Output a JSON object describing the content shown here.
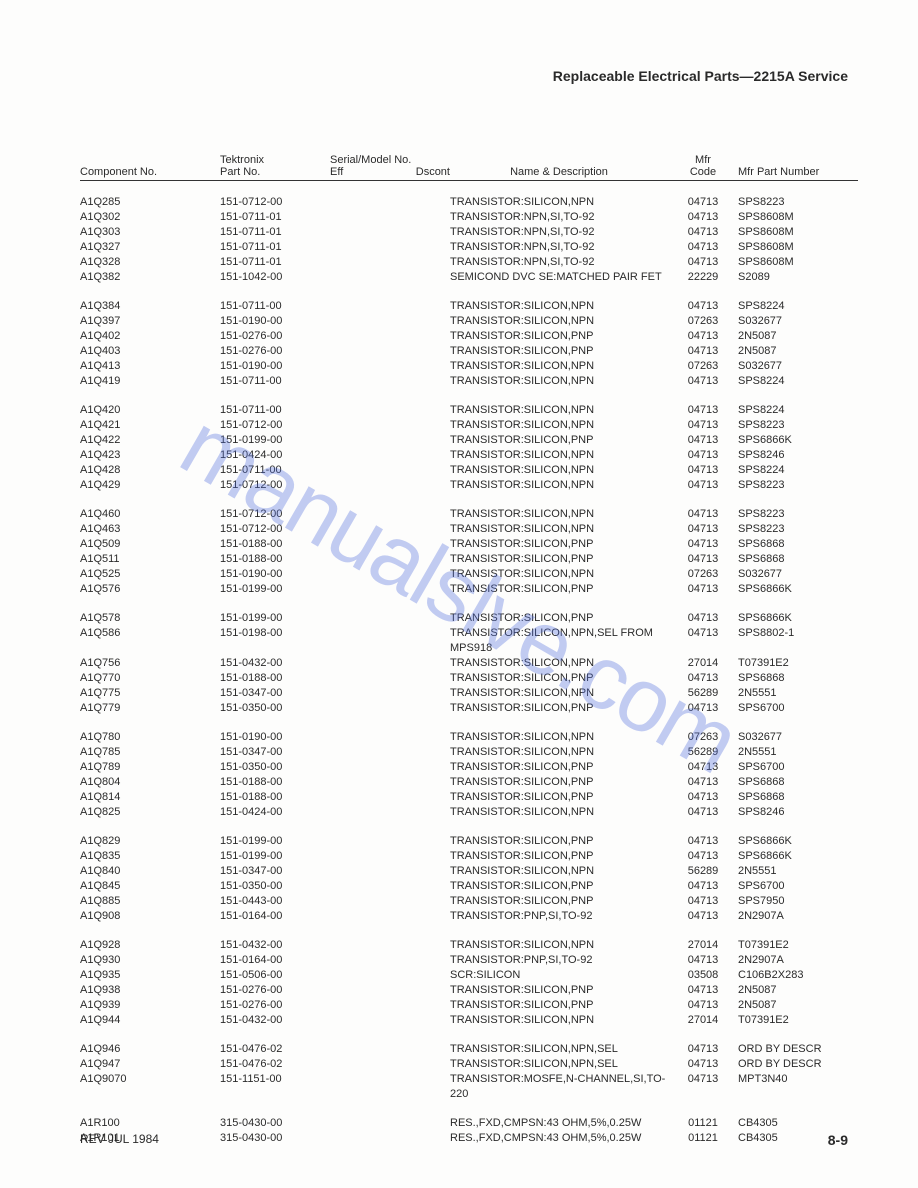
{
  "header_title": "Replaceable Electrical Parts—2215A Service",
  "columns": {
    "component_no": "Component No.",
    "tektronix": "Tektronix",
    "part_no": "Part No.",
    "serial_model": "Serial/Model No.",
    "eff": "Eff",
    "dscont": "Dscont",
    "name_desc": "Name & Description",
    "mfr": "Mfr",
    "code": "Code",
    "mfr_part": "Mfr Part Number"
  },
  "rows": [
    {
      "c": "A1Q285",
      "p": "151-0712-00",
      "d": "TRANSISTOR:SILICON,NPN",
      "m": "04713",
      "n": "SPS8223"
    },
    {
      "c": "A1Q302",
      "p": "151-0711-01",
      "d": "TRANSISTOR:NPN,SI,TO-92",
      "m": "04713",
      "n": "SPS8608M"
    },
    {
      "c": "A1Q303",
      "p": "151-0711-01",
      "d": "TRANSISTOR:NPN,SI,TO-92",
      "m": "04713",
      "n": "SPS8608M"
    },
    {
      "c": "A1Q327",
      "p": "151-0711-01",
      "d": "TRANSISTOR:NPN,SI,TO-92",
      "m": "04713",
      "n": "SPS8608M"
    },
    {
      "c": "A1Q328",
      "p": "151-0711-01",
      "d": "TRANSISTOR:NPN,SI,TO-92",
      "m": "04713",
      "n": "SPS8608M"
    },
    {
      "c": "A1Q382",
      "p": "151-1042-00",
      "d": "SEMICOND DVC SE:MATCHED PAIR FET",
      "m": "22229",
      "n": "S2089"
    },
    {
      "sp": true
    },
    {
      "c": "A1Q384",
      "p": "151-0711-00",
      "d": "TRANSISTOR:SILICON,NPN",
      "m": "04713",
      "n": "SPS8224"
    },
    {
      "c": "A1Q397",
      "p": "151-0190-00",
      "d": "TRANSISTOR:SILICON,NPN",
      "m": "07263",
      "n": "S032677"
    },
    {
      "c": "A1Q402",
      "p": "151-0276-00",
      "d": "TRANSISTOR:SILICON,PNP",
      "m": "04713",
      "n": "2N5087"
    },
    {
      "c": "A1Q403",
      "p": "151-0276-00",
      "d": "TRANSISTOR:SILICON,PNP",
      "m": "04713",
      "n": "2N5087"
    },
    {
      "c": "A1Q413",
      "p": "151-0190-00",
      "d": "TRANSISTOR:SILICON,NPN",
      "m": "07263",
      "n": "S032677"
    },
    {
      "c": "A1Q419",
      "p": "151-0711-00",
      "d": "TRANSISTOR:SILICON,NPN",
      "m": "04713",
      "n": "SPS8224"
    },
    {
      "sp": true
    },
    {
      "c": "A1Q420",
      "p": "151-0711-00",
      "d": "TRANSISTOR:SILICON,NPN",
      "m": "04713",
      "n": "SPS8224"
    },
    {
      "c": "A1Q421",
      "p": "151-0712-00",
      "d": "TRANSISTOR:SILICON,NPN",
      "m": "04713",
      "n": "SPS8223"
    },
    {
      "c": "A1Q422",
      "p": "151-0199-00",
      "d": "TRANSISTOR:SILICON,PNP",
      "m": "04713",
      "n": "SPS6866K"
    },
    {
      "c": "A1Q423",
      "p": "151-0424-00",
      "d": "TRANSISTOR:SILICON,NPN",
      "m": "04713",
      "n": "SPS8246"
    },
    {
      "c": "A1Q428",
      "p": "151-0711-00",
      "d": "TRANSISTOR:SILICON,NPN",
      "m": "04713",
      "n": "SPS8224"
    },
    {
      "c": "A1Q429",
      "p": "151-0712-00",
      "d": "TRANSISTOR:SILICON,NPN",
      "m": "04713",
      "n": "SPS8223"
    },
    {
      "sp": true
    },
    {
      "c": "A1Q460",
      "p": "151-0712-00",
      "d": "TRANSISTOR:SILICON,NPN",
      "m": "04713",
      "n": "SPS8223"
    },
    {
      "c": "A1Q463",
      "p": "151-0712-00",
      "d": "TRANSISTOR:SILICON,NPN",
      "m": "04713",
      "n": "SPS8223"
    },
    {
      "c": "A1Q509",
      "p": "151-0188-00",
      "d": "TRANSISTOR:SILICON,PNP",
      "m": "04713",
      "n": "SPS6868"
    },
    {
      "c": "A1Q511",
      "p": "151-0188-00",
      "d": "TRANSISTOR:SILICON,PNP",
      "m": "04713",
      "n": "SPS6868"
    },
    {
      "c": "A1Q525",
      "p": "151-0190-00",
      "d": "TRANSISTOR:SILICON,NPN",
      "m": "07263",
      "n": "S032677"
    },
    {
      "c": "A1Q576",
      "p": "151-0199-00",
      "d": "TRANSISTOR:SILICON,PNP",
      "m": "04713",
      "n": "SPS6866K"
    },
    {
      "sp": true
    },
    {
      "c": "A1Q578",
      "p": "151-0199-00",
      "d": "TRANSISTOR:SILICON,PNP",
      "m": "04713",
      "n": "SPS6866K"
    },
    {
      "c": "A1Q586",
      "p": "151-0198-00",
      "d": "TRANSISTOR:SILICON,NPN,SEL FROM MPS918",
      "m": "04713",
      "n": "SPS8802-1"
    },
    {
      "c": "A1Q756",
      "p": "151-0432-00",
      "d": "TRANSISTOR:SILICON,NPN",
      "m": "27014",
      "n": "T07391E2"
    },
    {
      "c": "A1Q770",
      "p": "151-0188-00",
      "d": "TRANSISTOR:SILICON,PNP",
      "m": "04713",
      "n": "SPS6868"
    },
    {
      "c": "A1Q775",
      "p": "151-0347-00",
      "d": "TRANSISTOR:SILICON,NPN",
      "m": "56289",
      "n": "2N5551"
    },
    {
      "c": "A1Q779",
      "p": "151-0350-00",
      "d": "TRANSISTOR:SILICON,PNP",
      "m": "04713",
      "n": "SPS6700"
    },
    {
      "sp": true
    },
    {
      "c": "A1Q780",
      "p": "151-0190-00",
      "d": "TRANSISTOR:SILICON,NPN",
      "m": "07263",
      "n": "S032677"
    },
    {
      "c": "A1Q785",
      "p": "151-0347-00",
      "d": "TRANSISTOR:SILICON,NPN",
      "m": "56289",
      "n": "2N5551"
    },
    {
      "c": "A1Q789",
      "p": "151-0350-00",
      "d": "TRANSISTOR:SILICON,PNP",
      "m": "04713",
      "n": "SPS6700"
    },
    {
      "c": "A1Q804",
      "p": "151-0188-00",
      "d": "TRANSISTOR:SILICON,PNP",
      "m": "04713",
      "n": "SPS6868"
    },
    {
      "c": "A1Q814",
      "p": "151-0188-00",
      "d": "TRANSISTOR:SILICON,PNP",
      "m": "04713",
      "n": "SPS6868"
    },
    {
      "c": "A1Q825",
      "p": "151-0424-00",
      "d": "TRANSISTOR:SILICON,NPN",
      "m": "04713",
      "n": "SPS8246"
    },
    {
      "sp": true
    },
    {
      "c": "A1Q829",
      "p": "151-0199-00",
      "d": "TRANSISTOR:SILICON,PNP",
      "m": "04713",
      "n": "SPS6866K"
    },
    {
      "c": "A1Q835",
      "p": "151-0199-00",
      "d": "TRANSISTOR:SILICON,PNP",
      "m": "04713",
      "n": "SPS6866K"
    },
    {
      "c": "A1Q840",
      "p": "151-0347-00",
      "d": "TRANSISTOR:SILICON,NPN",
      "m": "56289",
      "n": "2N5551"
    },
    {
      "c": "A1Q845",
      "p": "151-0350-00",
      "d": "TRANSISTOR:SILICON,PNP",
      "m": "04713",
      "n": "SPS6700"
    },
    {
      "c": "A1Q885",
      "p": "151-0443-00",
      "d": "TRANSISTOR:SILICON,PNP",
      "m": "04713",
      "n": "SPS7950"
    },
    {
      "c": "A1Q908",
      "p": "151-0164-00",
      "d": "TRANSISTOR:PNP,SI,TO-92",
      "m": "04713",
      "n": "2N2907A"
    },
    {
      "sp": true
    },
    {
      "c": "A1Q928",
      "p": "151-0432-00",
      "d": "TRANSISTOR:SILICON,NPN",
      "m": "27014",
      "n": "T07391E2"
    },
    {
      "c": "A1Q930",
      "p": "151-0164-00",
      "d": "TRANSISTOR:PNP,SI,TO-92",
      "m": "04713",
      "n": "2N2907A"
    },
    {
      "c": "A1Q935",
      "p": "151-0506-00",
      "d": "SCR:SILICON",
      "m": "03508",
      "n": "C106B2X283"
    },
    {
      "c": "A1Q938",
      "p": "151-0276-00",
      "d": "TRANSISTOR:SILICON,PNP",
      "m": "04713",
      "n": "2N5087"
    },
    {
      "c": "A1Q939",
      "p": "151-0276-00",
      "d": "TRANSISTOR:SILICON,PNP",
      "m": "04713",
      "n": "2N5087"
    },
    {
      "c": "A1Q944",
      "p": "151-0432-00",
      "d": "TRANSISTOR:SILICON,NPN",
      "m": "27014",
      "n": "T07391E2"
    },
    {
      "sp": true
    },
    {
      "c": "A1Q946",
      "p": "151-0476-02",
      "d": "TRANSISTOR:SILICON,NPN,SEL",
      "m": "04713",
      "n": "ORD BY DESCR"
    },
    {
      "c": "A1Q947",
      "p": "151-0476-02",
      "d": "TRANSISTOR:SILICON,NPN,SEL",
      "m": "04713",
      "n": "ORD BY DESCR"
    },
    {
      "c": "A1Q9070",
      "p": "151-1151-00",
      "d": "TRANSISTOR:MOSFE,N-CHANNEL,SI,TO-220",
      "m": "04713",
      "n": "MPT3N40"
    },
    {
      "sp": true
    },
    {
      "c": "A1R100",
      "p": "315-0430-00",
      "d": "RES.,FXD,CMPSN:43 OHM,5%,0.25W",
      "m": "01121",
      "n": "CB4305"
    },
    {
      "c": "A1R101",
      "p": "315-0430-00",
      "d": "RES.,FXD,CMPSN:43 OHM,5%,0.25W",
      "m": "01121",
      "n": "CB4305"
    }
  ],
  "footer": {
    "rev": "REV JUL 1984",
    "page": "8-9"
  },
  "watermark": "manualslve.com"
}
